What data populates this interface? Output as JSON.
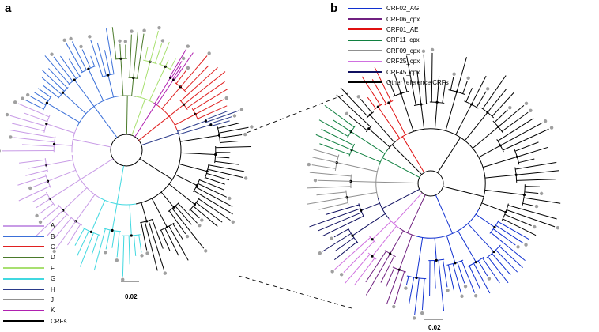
{
  "panels": {
    "a": {
      "letter": "a",
      "legend": [
        {
          "label": "A",
          "color": "#c89be6"
        },
        {
          "label": "B",
          "color": "#3a6fd8"
        },
        {
          "label": "C",
          "color": "#e02020"
        },
        {
          "label": "D",
          "color": "#4a7a2a"
        },
        {
          "label": "F",
          "color": "#a8e070"
        },
        {
          "label": "G",
          "color": "#40d8e0"
        },
        {
          "label": "H",
          "color": "#2a3a8a"
        },
        {
          "label": "J",
          "color": "#909090"
        },
        {
          "label": "K",
          "color": "#b020b0"
        },
        {
          "label": "CRFs",
          "color": "#000000"
        }
      ],
      "scale_bar": "0.02"
    },
    "b": {
      "letter": "b",
      "legend": [
        {
          "label": "CRF02_AG",
          "color": "#1030d0"
        },
        {
          "label": "CRF06_cpx",
          "color": "#702080"
        },
        {
          "label": "CRF01_AE",
          "color": "#e01010"
        },
        {
          "label": "CRF11_cpx",
          "color": "#108040"
        },
        {
          "label": "CRF09_cpx",
          "color": "#909090"
        },
        {
          "label": "CRF25_cpx",
          "color": "#d070e0"
        },
        {
          "label": "CRF45_cpx",
          "color": "#101060"
        },
        {
          "label": "Other reference CRFs",
          "color": "#000000"
        }
      ],
      "scale_bar": "0.02"
    }
  }
}
